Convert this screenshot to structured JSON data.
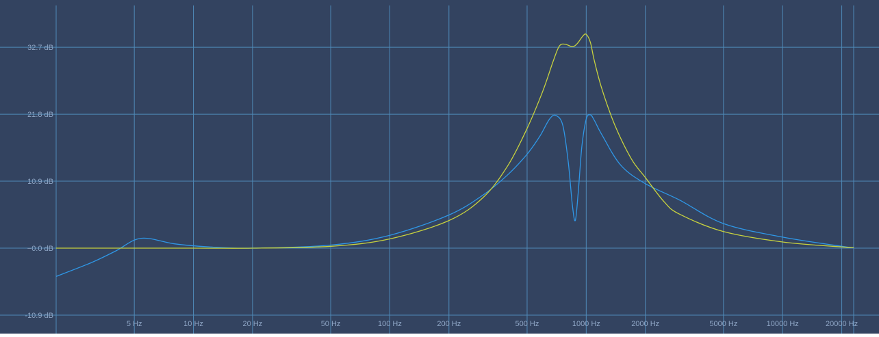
{
  "colors": {
    "background": "#334360",
    "grid": "#4f8ab8",
    "label": "#8fa6c6",
    "series_blue": "#2f97e6",
    "series_yellow": "#c8d23e"
  },
  "chart_data": {
    "type": "line",
    "title": "",
    "xlabel": "",
    "ylabel": "",
    "x_scale": "log",
    "xlim": [
      2,
      23000
    ],
    "ylim": [
      -10.9,
      39.5
    ],
    "grid": true,
    "x_ticks": [
      {
        "value": 5,
        "label": "5 Hz"
      },
      {
        "value": 10,
        "label": "10 Hz"
      },
      {
        "value": 20,
        "label": "20 Hz"
      },
      {
        "value": 50,
        "label": "50 Hz"
      },
      {
        "value": 100,
        "label": "100 Hz"
      },
      {
        "value": 200,
        "label": "200 Hz"
      },
      {
        "value": 500,
        "label": "500 Hz"
      },
      {
        "value": 1000,
        "label": "1000 Hz"
      },
      {
        "value": 2000,
        "label": "2000 Hz"
      },
      {
        "value": 5000,
        "label": "5000 Hz"
      },
      {
        "value": 10000,
        "label": "10000 Hz"
      },
      {
        "value": 20000,
        "label": "20000 Hz"
      }
    ],
    "y_ticks": [
      {
        "value": 32.7,
        "label": "32.7 dB"
      },
      {
        "value": 21.8,
        "label": "21.8 dB"
      },
      {
        "value": 10.9,
        "label": "10.9 dB"
      },
      {
        "value": 0,
        "label": "−0.0 dB"
      },
      {
        "value": -10.9,
        "label": "-10.9 dB"
      }
    ],
    "series": [
      {
        "color_key": "series_blue",
        "x": [
          2,
          3,
          4,
          5.4,
          8,
          12,
          20,
          50,
          100,
          200,
          300,
          400,
          500,
          580,
          650,
          700,
          760,
          810,
          850,
          880,
          910,
          950,
          1000,
          1050,
          1100,
          1200,
          1500,
          2000,
          3000,
          5000,
          10000,
          20000,
          23000
        ],
        "y": [
          -4.6,
          -2.4,
          -0.5,
          1.6,
          0.7,
          0.2,
          0.0,
          0.5,
          2.1,
          5.4,
          8.7,
          12.0,
          15.3,
          18.2,
          21.0,
          21.6,
          20.0,
          14.0,
          7.0,
          4.5,
          9.0,
          16.5,
          21.0,
          21.7,
          20.8,
          18.5,
          13.5,
          10.5,
          7.8,
          4.0,
          1.8,
          0.3,
          0.1
        ]
      },
      {
        "color_key": "series_yellow",
        "x": [
          2,
          10,
          20,
          50,
          100,
          200,
          300,
          400,
          500,
          600,
          680,
          730,
          780,
          850,
          900,
          960,
          1000,
          1050,
          1100,
          1200,
          1400,
          1700,
          2000,
          2500,
          3000,
          5000,
          10000,
          20000,
          23000
        ],
        "y": [
          0.0,
          0.0,
          0.0,
          0.3,
          1.5,
          4.5,
          8.3,
          13.5,
          19.5,
          25.5,
          30.5,
          32.9,
          33.2,
          32.8,
          33.3,
          34.5,
          34.8,
          33.5,
          30.5,
          26.0,
          20.0,
          14.5,
          11.5,
          7.5,
          5.5,
          2.7,
          1.0,
          0.2,
          0.1
        ]
      }
    ]
  }
}
